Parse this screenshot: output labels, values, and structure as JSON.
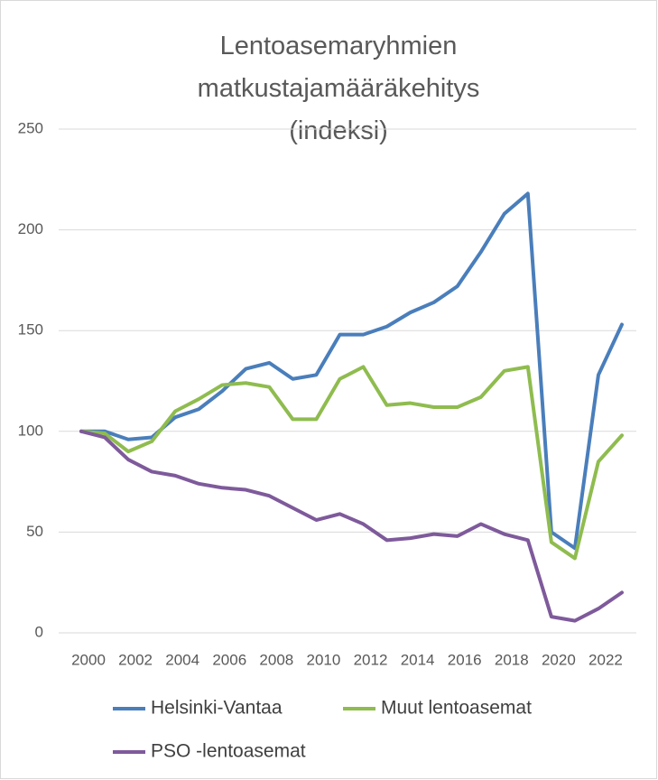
{
  "chart_data": {
    "type": "line",
    "title": "Lentoasemaryhmien matkustajamääräkehitys (indeksi)",
    "x": [
      2000,
      2001,
      2002,
      2003,
      2004,
      2005,
      2006,
      2007,
      2008,
      2009,
      2010,
      2011,
      2012,
      2013,
      2014,
      2015,
      2016,
      2017,
      2018,
      2019,
      2020,
      2021,
      2022,
      2023
    ],
    "xlim": [
      2000,
      2023
    ],
    "xticks": [
      2000,
      2002,
      2004,
      2006,
      2008,
      2010,
      2012,
      2014,
      2016,
      2018,
      2020,
      2022
    ],
    "ylim": [
      0,
      250
    ],
    "yticks": [
      0,
      50,
      100,
      150,
      200,
      250
    ],
    "grid": true,
    "series": [
      {
        "name": "Helsinki-Vantaa",
        "color": "#4a7ebb",
        "values": [
          100,
          100,
          96,
          97,
          107,
          111,
          120,
          131,
          134,
          126,
          128,
          148,
          148,
          152,
          159,
          164,
          172,
          189,
          208,
          218,
          50,
          42,
          128,
          153
        ]
      },
      {
        "name": "Muut lentoasemat",
        "color": "#8fbc4f",
        "values": [
          100,
          99,
          90,
          95,
          110,
          116,
          123,
          124,
          122,
          106,
          106,
          126,
          132,
          113,
          114,
          112,
          112,
          117,
          130,
          132,
          45,
          37,
          85,
          98
        ]
      },
      {
        "name": "PSO -lentoasemat",
        "color": "#7e5a9b",
        "values": [
          100,
          97,
          86,
          80,
          78,
          74,
          72,
          71,
          68,
          62,
          56,
          59,
          54,
          46,
          47,
          49,
          48,
          54,
          49,
          46,
          8,
          6,
          12,
          20
        ]
      }
    ],
    "legend": "bottom"
  }
}
